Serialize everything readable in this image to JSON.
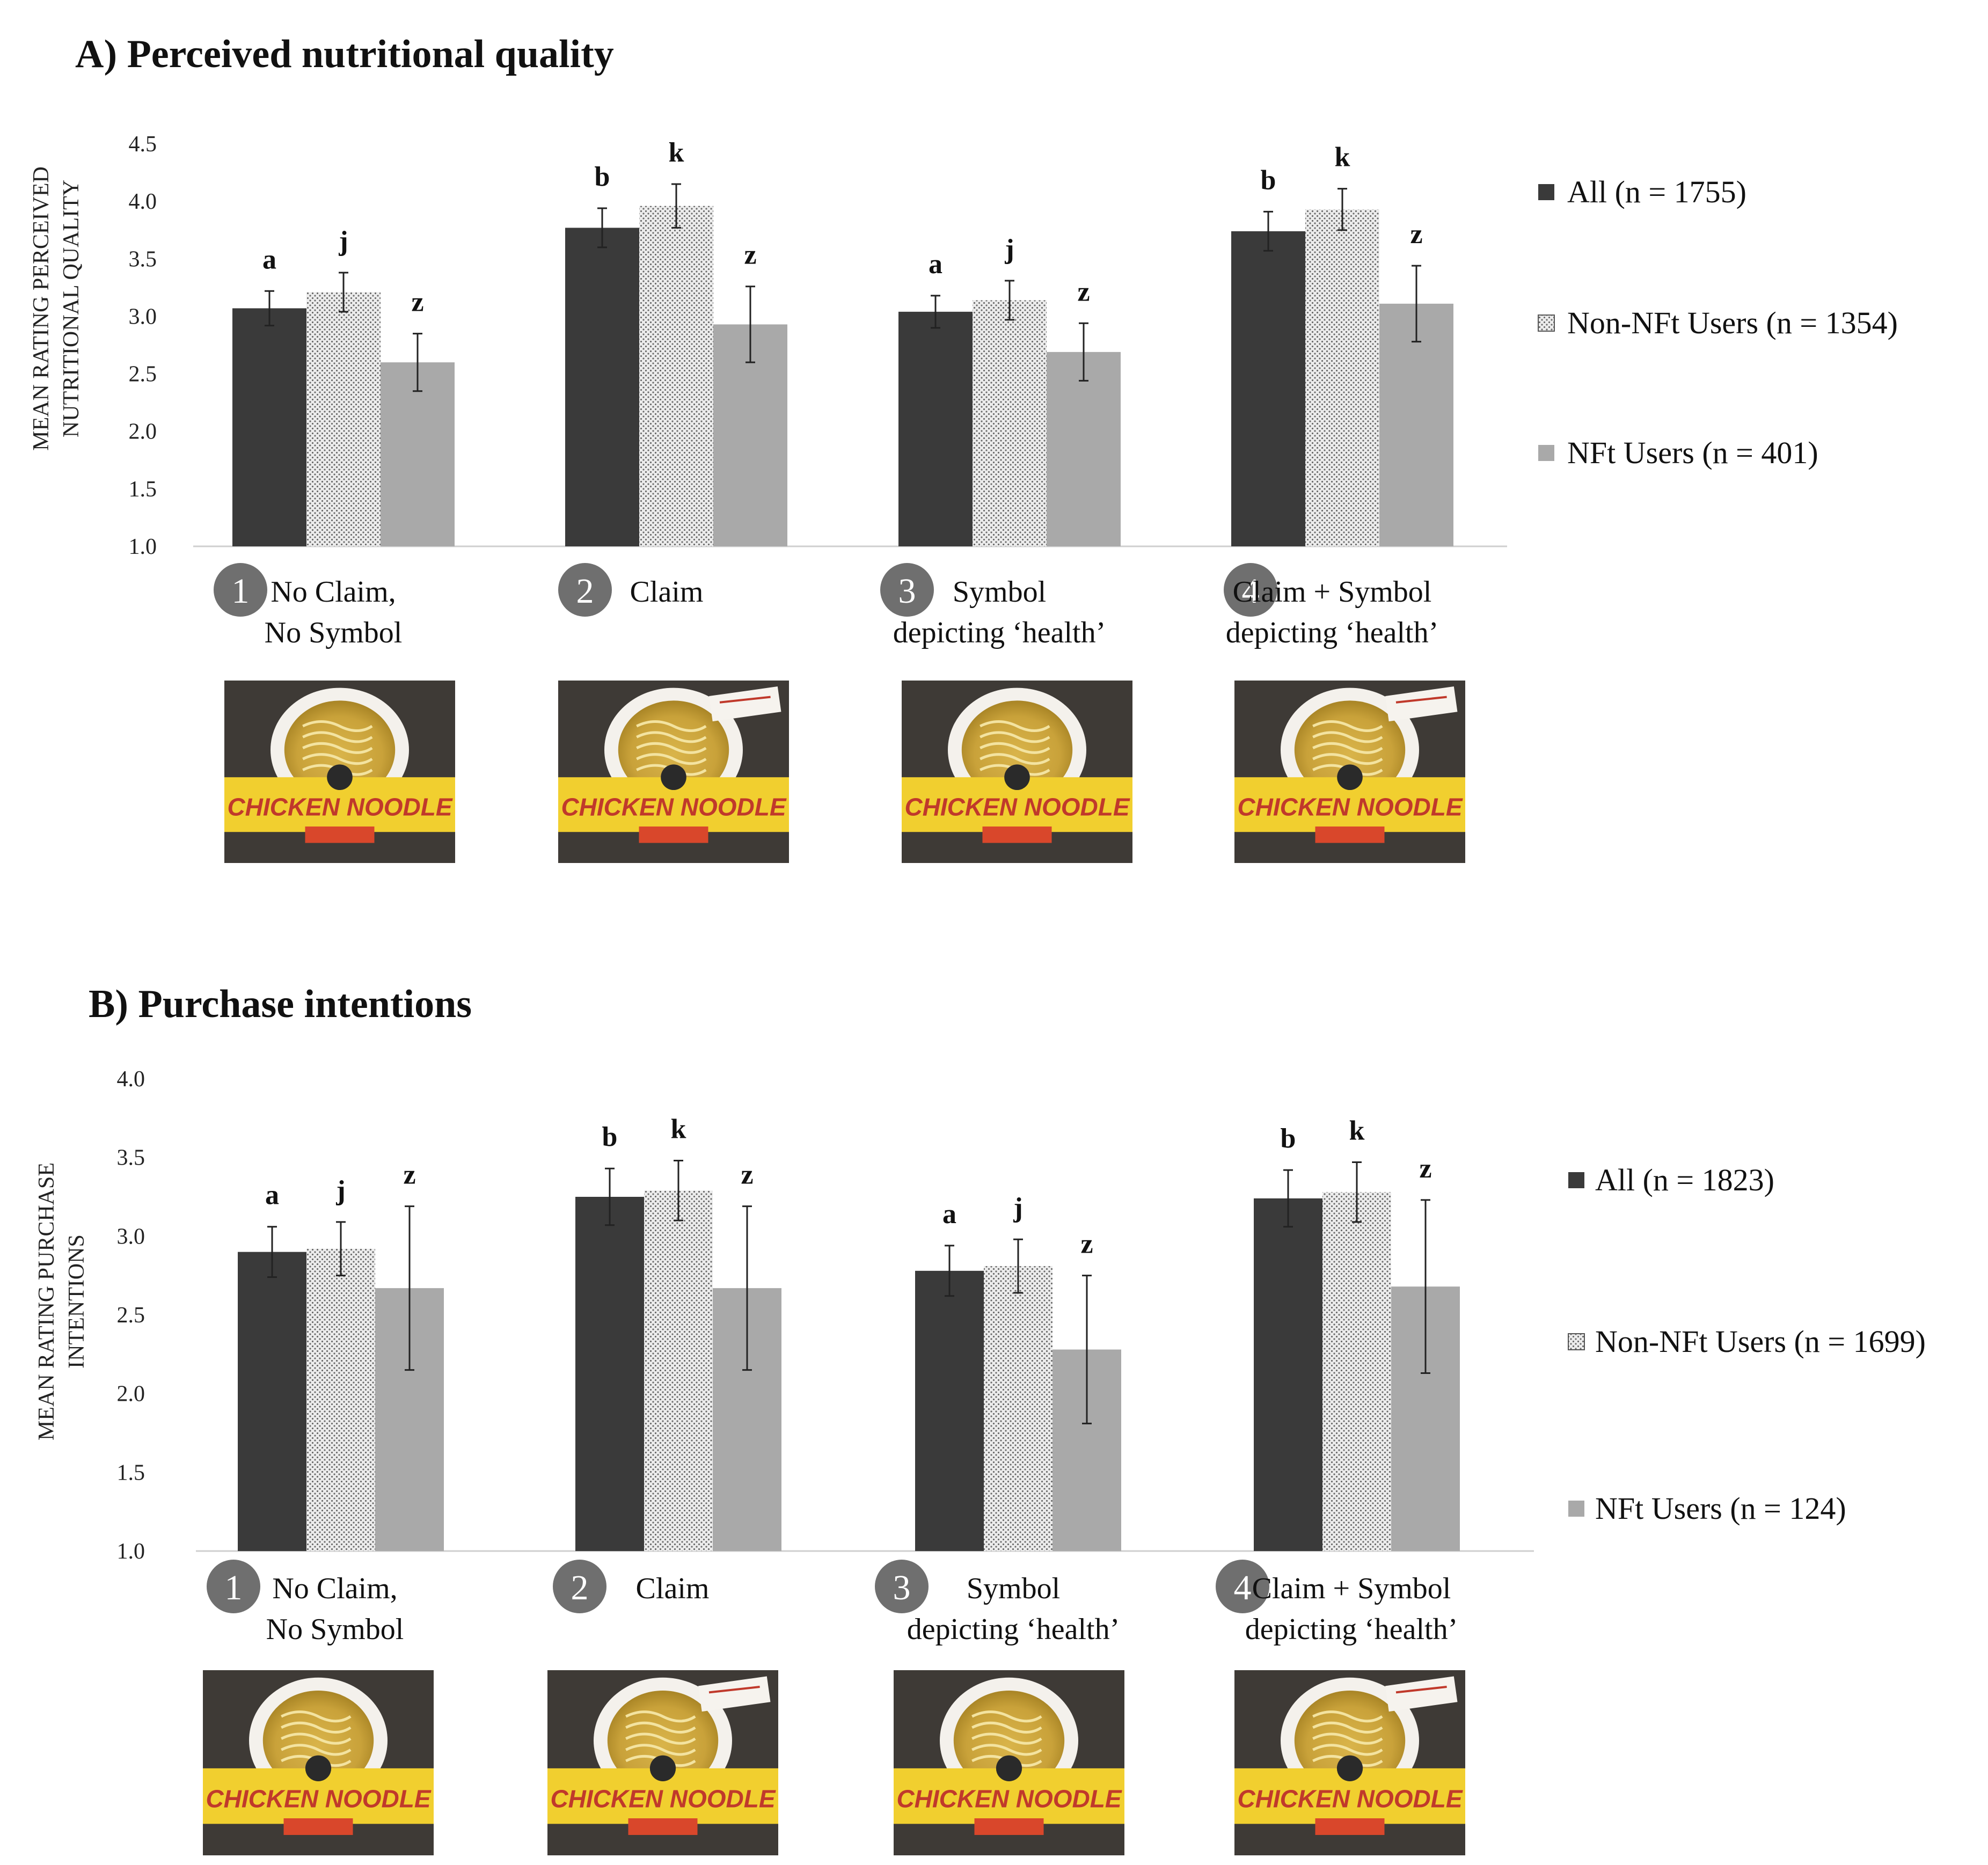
{
  "colors": {
    "all": "#3a3a3a",
    "non_nft": "#e4e4e4",
    "nft": "#a9a9a9",
    "circle": "#6f6f6f",
    "package_yellow": "#f1cf2f",
    "package_wood": "#3e3a36",
    "package_ribbon": "#d9472b"
  },
  "package_label": "CHICKEN NOODLE",
  "chart_data": [
    {
      "type": "bar",
      "title": "A) Perceived nutritional quality",
      "ylabel_lines": [
        "MEAN RATING PERCEIVED",
        "NUTRITIONAL QUALITY"
      ],
      "ylim": [
        1.0,
        4.5
      ],
      "yticks": [
        "1.0",
        "1.5",
        "2.0",
        "2.5",
        "3.0",
        "3.5",
        "4.0",
        "4.5"
      ],
      "categories": [
        {
          "num": "1",
          "lines": [
            "No Claim,",
            "No Symbol"
          ]
        },
        {
          "num": "2",
          "lines": [
            "Claim"
          ]
        },
        {
          "num": "3",
          "lines": [
            "Symbol",
            "depicting ‘health’"
          ]
        },
        {
          "num": "4",
          "lines": [
            "Claim + Symbol",
            "depicting ‘health’"
          ]
        }
      ],
      "series": [
        {
          "name": "All (n = 1755)",
          "key": "all",
          "values": [
            3.07,
            3.77,
            3.04,
            3.74
          ],
          "errors": [
            0.15,
            0.17,
            0.14,
            0.17
          ],
          "letters": [
            "a",
            "b",
            "a",
            "b"
          ]
        },
        {
          "name": "Non-NFt Users (n = 1354)",
          "key": "non_nft",
          "values": [
            3.21,
            3.96,
            3.14,
            3.93
          ],
          "errors": [
            0.17,
            0.19,
            0.17,
            0.18
          ],
          "letters": [
            "j",
            "k",
            "j",
            "k"
          ]
        },
        {
          "name": "NFt Users (n = 401)",
          "key": "nft",
          "values": [
            2.6,
            2.93,
            2.69,
            3.11
          ],
          "errors": [
            0.25,
            0.33,
            0.25,
            0.33
          ],
          "letters": [
            "z",
            "z",
            "z",
            "z"
          ]
        }
      ]
    },
    {
      "type": "bar",
      "title": "B) Purchase intentions",
      "ylabel_lines": [
        "MEAN RATING PURCHASE",
        "INTENTIONS"
      ],
      "ylim": [
        1.0,
        4.0
      ],
      "yticks": [
        "1.0",
        "1.5",
        "2.0",
        "2.5",
        "3.0",
        "3.5",
        "4.0"
      ],
      "categories": [
        {
          "num": "1",
          "lines": [
            "No Claim,",
            "No Symbol"
          ]
        },
        {
          "num": "2",
          "lines": [
            "Claim"
          ]
        },
        {
          "num": "3",
          "lines": [
            "Symbol",
            "depicting ‘health’"
          ]
        },
        {
          "num": "4",
          "lines": [
            "Claim + Symbol",
            "depicting ‘health’"
          ]
        }
      ],
      "series": [
        {
          "name": "All (n = 1823)",
          "key": "all",
          "values": [
            2.9,
            3.25,
            2.78,
            3.24
          ],
          "errors": [
            0.16,
            0.18,
            0.16,
            0.18
          ],
          "letters": [
            "a",
            "b",
            "a",
            "b"
          ]
        },
        {
          "name": "Non-NFt Users (n = 1699)",
          "key": "non_nft",
          "values": [
            2.92,
            3.29,
            2.81,
            3.28
          ],
          "errors": [
            0.17,
            0.19,
            0.17,
            0.19
          ],
          "letters": [
            "j",
            "k",
            "j",
            "k"
          ]
        },
        {
          "name": "NFt Users (n = 124)",
          "key": "nft",
          "values": [
            2.67,
            2.67,
            2.28,
            2.68
          ],
          "errors": [
            0.52,
            0.52,
            0.47,
            0.55
          ],
          "letters": [
            "z",
            "z",
            "z",
            "z"
          ]
        }
      ]
    }
  ]
}
